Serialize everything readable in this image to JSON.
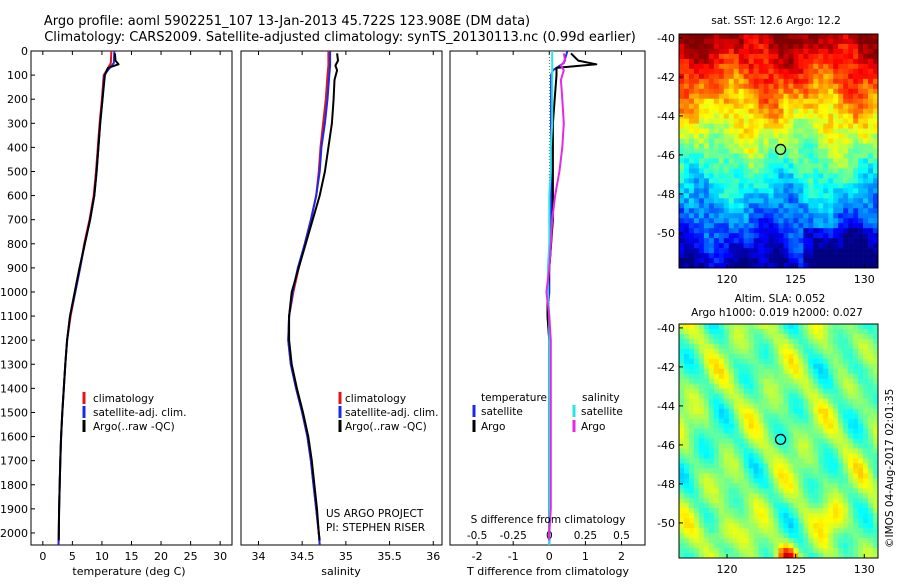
{
  "header": {
    "line1": "Argo profile: aoml 5902251_107 13-Jan-2013 45.722S 123.908E (DM data)",
    "line2": "Climatology: CARS2009. Satellite-adjusted climatology: synTS_20130113.nc (0.99d earlier)"
  },
  "colors": {
    "climatology": "#e0141e",
    "satellite": "#1e28e6",
    "argo": "#000000",
    "sal_satellite": "#28e6e6",
    "sal_argo": "#e628e6"
  },
  "legend_main": {
    "climatology": "climatology",
    "satellite": "satellite-adj. clim.",
    "argo": "Argo(..raw -QC)"
  },
  "legend_diff": {
    "temp_header": "temperature",
    "sal_header": "salinity",
    "satellite": "satellite",
    "argo": "Argo"
  },
  "credits": {
    "project": "US ARGO PROJECT",
    "pi": "PI: STEPHEN RISER"
  },
  "maps": {
    "sst_title": "sat. SST: 12.6  Argo: 12.2",
    "sla_title1": "Altim. SLA: 0.052",
    "sla_title2": "Argo h1000: 0.019 h2000: 0.027",
    "lat_ticks": [
      "-40",
      "-42",
      "-44",
      "-46",
      "-48",
      "-50"
    ],
    "lon_ticks": [
      "120",
      "125",
      "130"
    ],
    "float_lon": 123.9,
    "float_lat": -45.72,
    "lon_range": [
      116.5,
      131.0
    ],
    "lat_range": [
      -51.8,
      -39.8
    ]
  },
  "footer": {
    "stamp": "©IMOS 04-Aug-2017 02:01:35"
  },
  "chart_data": [
    {
      "type": "line",
      "title": "",
      "xlabel": "temperature (deg C)",
      "ylabel": "",
      "xlim": [
        -2,
        32
      ],
      "ylim": [
        2050,
        0
      ],
      "xticks": [
        "0",
        "5",
        "10",
        "15",
        "20",
        "25",
        "30"
      ],
      "yticks": [
        "0",
        "100",
        "200",
        "300",
        "400",
        "500",
        "600",
        "700",
        "800",
        "900",
        "1000",
        "1100",
        "1200",
        "1300",
        "1400",
        "1500",
        "1600",
        "1700",
        "1800",
        "1900",
        "2000"
      ],
      "series": [
        {
          "name": "climatology",
          "points": [
            [
              11.6,
              0
            ],
            [
              11.5,
              50
            ],
            [
              10.8,
              80
            ],
            [
              10.3,
              100
            ],
            [
              10.0,
              200
            ],
            [
              9.6,
              300
            ],
            [
              9.3,
              400
            ],
            [
              9.0,
              500
            ],
            [
              8.6,
              600
            ],
            [
              7.9,
              700
            ],
            [
              7.0,
              800
            ],
            [
              6.3,
              900
            ],
            [
              5.5,
              1000
            ],
            [
              4.7,
              1100
            ],
            [
              4.1,
              1200
            ],
            [
              3.8,
              1300
            ],
            [
              3.55,
              1400
            ],
            [
              3.3,
              1500
            ],
            [
              3.1,
              1600
            ],
            [
              2.95,
              1700
            ],
            [
              2.85,
              1800
            ],
            [
              2.75,
              1900
            ],
            [
              2.7,
              2000
            ],
            [
              2.65,
              2050
            ]
          ]
        },
        {
          "name": "satellite-adj. clim.",
          "points": [
            [
              12.1,
              0
            ],
            [
              12.0,
              50
            ],
            [
              11.0,
              80
            ],
            [
              10.4,
              100
            ],
            [
              10.1,
              200
            ],
            [
              9.7,
              300
            ],
            [
              9.4,
              400
            ],
            [
              9.1,
              500
            ],
            [
              8.7,
              600
            ],
            [
              8.0,
              700
            ],
            [
              7.1,
              800
            ],
            [
              6.3,
              900
            ],
            [
              5.5,
              1000
            ],
            [
              4.6,
              1100
            ],
            [
              4.1,
              1200
            ],
            [
              3.8,
              1300
            ],
            [
              3.55,
              1400
            ],
            [
              3.3,
              1500
            ],
            [
              3.1,
              1600
            ],
            [
              2.95,
              1700
            ],
            [
              2.85,
              1800
            ],
            [
              2.75,
              1900
            ],
            [
              2.7,
              2000
            ],
            [
              2.65,
              2050
            ]
          ]
        },
        {
          "name": "Argo(..raw -QC)",
          "points": [
            [
              12.2,
              10
            ],
            [
              12.3,
              40
            ],
            [
              12.8,
              55
            ],
            [
              11.0,
              70
            ],
            [
              10.5,
              100
            ],
            [
              10.1,
              200
            ],
            [
              9.7,
              300
            ],
            [
              9.4,
              400
            ],
            [
              9.1,
              500
            ],
            [
              8.7,
              600
            ],
            [
              8.0,
              700
            ],
            [
              7.1,
              800
            ],
            [
              6.2,
              900
            ],
            [
              5.4,
              1000
            ],
            [
              4.6,
              1100
            ],
            [
              4.1,
              1200
            ],
            [
              3.8,
              1300
            ],
            [
              3.55,
              1400
            ],
            [
              3.3,
              1500
            ],
            [
              3.1,
              1600
            ],
            [
              2.95,
              1700
            ],
            [
              2.85,
              1800
            ],
            [
              2.75,
              1900
            ],
            [
              2.7,
              2000
            ],
            [
              2.7,
              2030
            ]
          ]
        }
      ]
    },
    {
      "type": "line",
      "title": "",
      "xlabel": "salinity",
      "ylabel": "",
      "xlim": [
        33.8,
        36.1
      ],
      "ylim": [
        2050,
        0
      ],
      "xticks": [
        "34",
        "34.5",
        "35",
        "35.5",
        "36"
      ],
      "series": [
        {
          "name": "climatology",
          "points": [
            [
              34.8,
              0
            ],
            [
              34.8,
              60
            ],
            [
              34.79,
              100
            ],
            [
              34.77,
              200
            ],
            [
              34.74,
              300
            ],
            [
              34.71,
              400
            ],
            [
              34.69,
              500
            ],
            [
              34.66,
              600
            ],
            [
              34.6,
              700
            ],
            [
              34.53,
              800
            ],
            [
              34.46,
              900
            ],
            [
              34.4,
              1000
            ],
            [
              34.35,
              1100
            ],
            [
              34.34,
              1200
            ],
            [
              34.37,
              1300
            ],
            [
              34.43,
              1400
            ],
            [
              34.5,
              1500
            ],
            [
              34.56,
              1600
            ],
            [
              34.6,
              1700
            ],
            [
              34.63,
              1800
            ],
            [
              34.66,
              1900
            ],
            [
              34.69,
              2000
            ],
            [
              34.7,
              2050
            ]
          ]
        },
        {
          "name": "satellite-adj. clim.",
          "points": [
            [
              34.82,
              0
            ],
            [
              34.82,
              60
            ],
            [
              34.81,
              100
            ],
            [
              34.79,
              200
            ],
            [
              34.76,
              300
            ],
            [
              34.72,
              400
            ],
            [
              34.7,
              500
            ],
            [
              34.66,
              600
            ],
            [
              34.6,
              700
            ],
            [
              34.53,
              800
            ],
            [
              34.45,
              900
            ],
            [
              34.39,
              1000
            ],
            [
              34.35,
              1100
            ],
            [
              34.34,
              1200
            ],
            [
              34.37,
              1300
            ],
            [
              34.43,
              1400
            ],
            [
              34.5,
              1500
            ],
            [
              34.56,
              1600
            ],
            [
              34.6,
              1700
            ],
            [
              34.63,
              1800
            ],
            [
              34.66,
              1900
            ],
            [
              34.69,
              2000
            ],
            [
              34.7,
              2050
            ]
          ]
        },
        {
          "name": "Argo(..raw -QC)",
          "points": [
            [
              34.9,
              10
            ],
            [
              34.91,
              40
            ],
            [
              34.88,
              60
            ],
            [
              34.9,
              80
            ],
            [
              34.87,
              120
            ],
            [
              34.86,
              200
            ],
            [
              34.84,
              300
            ],
            [
              34.8,
              400
            ],
            [
              34.76,
              500
            ],
            [
              34.7,
              600
            ],
            [
              34.62,
              700
            ],
            [
              34.54,
              800
            ],
            [
              34.46,
              900
            ],
            [
              34.38,
              1000
            ],
            [
              34.35,
              1100
            ],
            [
              34.35,
              1200
            ],
            [
              34.38,
              1300
            ],
            [
              34.44,
              1400
            ],
            [
              34.51,
              1500
            ],
            [
              34.57,
              1600
            ],
            [
              34.61,
              1700
            ],
            [
              34.64,
              1800
            ],
            [
              34.67,
              1900
            ],
            [
              34.69,
              2000
            ],
            [
              34.7,
              2030
            ]
          ]
        }
      ]
    },
    {
      "type": "line",
      "title": "",
      "xlabel": "T difference from climatology",
      "x2label": "S difference from climatology",
      "ylabel": "",
      "xlim": [
        -2.75,
        2.65
      ],
      "x2lim": [
        -0.6875,
        0.6625
      ],
      "ylim": [
        2050,
        0
      ],
      "xticks": [
        "-2",
        "-1",
        "0",
        "1",
        "2"
      ],
      "x2ticks": [
        "-0.5",
        "-0.25",
        "0",
        "0.25",
        "0.5"
      ],
      "series": [
        {
          "name": "temperature satellite",
          "points": [
            [
              0.5,
              0
            ],
            [
              0.4,
              50
            ],
            [
              0.1,
              80
            ],
            [
              0.05,
              100
            ],
            [
              0.05,
              200
            ],
            [
              0.05,
              300
            ],
            [
              0.05,
              400
            ],
            [
              0.05,
              500
            ],
            [
              0.05,
              600
            ],
            [
              0.05,
              700
            ],
            [
              0.05,
              800
            ],
            [
              0,
              900
            ],
            [
              0,
              1000
            ],
            [
              -0.05,
              1100
            ],
            [
              0,
              1200
            ],
            [
              0,
              1300
            ],
            [
              0,
              1500
            ],
            [
              0,
              1700
            ],
            [
              0,
              1900
            ],
            [
              0,
              2050
            ]
          ]
        },
        {
          "name": "temperature Argo",
          "points": [
            [
              0.6,
              10
            ],
            [
              0.8,
              40
            ],
            [
              1.3,
              55
            ],
            [
              0.2,
              70
            ],
            [
              0.2,
              100
            ],
            [
              0.15,
              200
            ],
            [
              0.1,
              300
            ],
            [
              0.1,
              400
            ],
            [
              0.1,
              500
            ],
            [
              0.1,
              600
            ],
            [
              0.1,
              700
            ],
            [
              0.05,
              800
            ],
            [
              0,
              900
            ],
            [
              -0.05,
              1000
            ],
            [
              -0.05,
              1100
            ],
            [
              0,
              1200
            ],
            [
              0,
              1400
            ],
            [
              0,
              1600
            ],
            [
              0,
              1800
            ],
            [
              0,
              2030
            ]
          ]
        },
        {
          "name": "salinity satellite",
          "points": [
            [
              0.02,
              0
            ],
            [
              0.02,
              60
            ],
            [
              0.02,
              100
            ],
            [
              0.02,
              200
            ],
            [
              0.02,
              300
            ],
            [
              0.01,
              400
            ],
            [
              0.01,
              500
            ],
            [
              0,
              600
            ],
            [
              0,
              700
            ],
            [
              0,
              800
            ],
            [
              -0.01,
              900
            ],
            [
              -0.01,
              1000
            ],
            [
              0,
              1100
            ],
            [
              0,
              1200
            ],
            [
              0,
              1400
            ],
            [
              0,
              1600
            ],
            [
              0,
              1800
            ],
            [
              0,
              2050
            ]
          ]
        },
        {
          "name": "salinity Argo",
          "points": [
            [
              0.1,
              10
            ],
            [
              0.11,
              40
            ],
            [
              0.08,
              60
            ],
            [
              0.1,
              80
            ],
            [
              0.08,
              120
            ],
            [
              0.09,
              200
            ],
            [
              0.1,
              300
            ],
            [
              0.09,
              400
            ],
            [
              0.07,
              500
            ],
            [
              0.04,
              600
            ],
            [
              0.02,
              700
            ],
            [
              0.01,
              800
            ],
            [
              0,
              900
            ],
            [
              -0.02,
              1000
            ],
            [
              0,
              1100
            ],
            [
              0.01,
              1200
            ],
            [
              0.01,
              1300
            ],
            [
              0.01,
              1400
            ],
            [
              0.01,
              1500
            ],
            [
              0.01,
              1600
            ],
            [
              0.01,
              1700
            ],
            [
              0.01,
              1800
            ],
            [
              0.01,
              1900
            ],
            [
              0,
              2000
            ],
            [
              0,
              2030
            ]
          ]
        }
      ]
    },
    {
      "type": "heatmap",
      "title": "sat. SST: 12.6  Argo: 12.2",
      "xlabel": "",
      "ylabel": "",
      "xlim": [
        116.5,
        131
      ],
      "ylim": [
        -51.8,
        -39.8
      ],
      "colormap": "jet (warm north, cold south)"
    },
    {
      "type": "heatmap",
      "title": "Altim. SLA: 0.052",
      "xlabel": "",
      "ylabel": "",
      "xlim": [
        116.5,
        131
      ],
      "ylim": [
        -51.8,
        -39.8
      ],
      "colormap": "jet (mostly green)"
    }
  ]
}
